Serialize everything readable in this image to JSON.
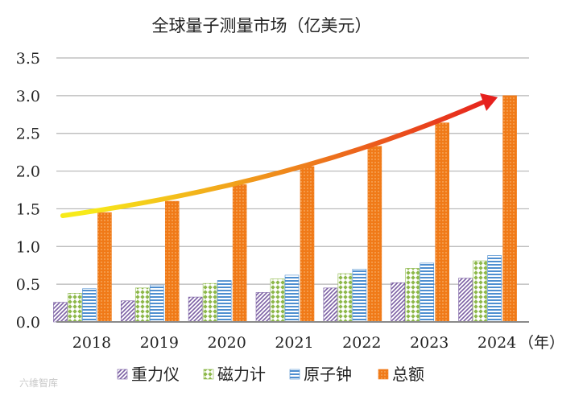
{
  "chart_data": {
    "type": "bar",
    "title": "全球量子测量市场（亿美元）",
    "categories": [
      "2018",
      "2019",
      "2020",
      "2021",
      "2022",
      "2023",
      "2024"
    ],
    "x_unit": "（年）",
    "ylim": [
      0,
      3.5
    ],
    "yticks": [
      "0.0",
      "0.5",
      "1.0",
      "1.5",
      "2.0",
      "2.5",
      "3.0",
      "3.5"
    ],
    "grid": true,
    "legend_position": "bottom",
    "series": [
      {
        "name": "重力仪",
        "values": [
          0.26,
          0.28,
          0.33,
          0.39,
          0.45,
          0.52,
          0.58
        ],
        "color": "#7b5fa3"
      },
      {
        "name": "磁力计",
        "values": [
          0.38,
          0.45,
          0.51,
          0.57,
          0.64,
          0.71,
          0.81
        ],
        "color": "#8db84a"
      },
      {
        "name": "原子钟",
        "values": [
          0.44,
          0.49,
          0.55,
          0.62,
          0.7,
          0.78,
          0.88
        ],
        "color": "#4f8fd0"
      },
      {
        "name": "总额",
        "values": [
          1.45,
          1.6,
          1.82,
          2.06,
          2.33,
          2.64,
          3.0
        ],
        "color": "#f07a18"
      }
    ],
    "trend_arrow": {
      "from_category": "2018",
      "to_category": "2024",
      "from_value": 1.43,
      "to_value": 3.0,
      "colors": [
        "#f7ea1a",
        "#e6201d"
      ]
    }
  },
  "watermark": "六维智库"
}
